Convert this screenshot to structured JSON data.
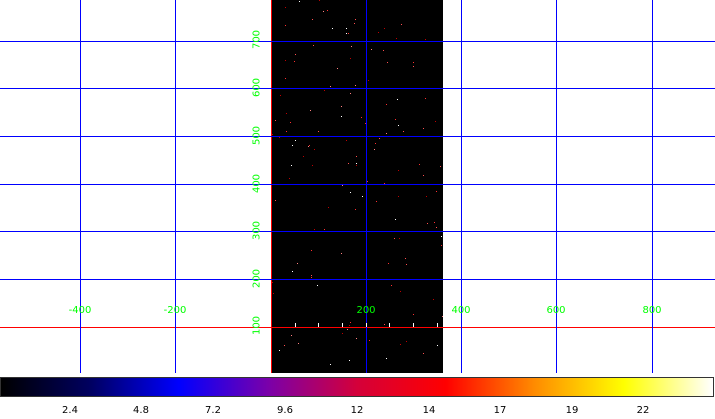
{
  "grid": {
    "x_labels": [
      "-400",
      "-200",
      "200",
      "400",
      "600",
      "800"
    ],
    "y_labels": [
      "700",
      "600",
      "500",
      "400",
      "300",
      "200",
      "100"
    ],
    "label_color": "#00ff00",
    "grid_color": "#0000ff",
    "crosshair_color": "#ff0000"
  },
  "colorbar": {
    "ticks": [
      "2.4",
      "4.8",
      "7.2",
      "9.6",
      "12",
      "14",
      "17",
      "19",
      "22"
    ],
    "stops": [
      "#000000",
      "#000060",
      "#0000ff",
      "#7a00aa",
      "#d4003a",
      "#ff0000",
      "#ff8c00",
      "#ffff00",
      "#ffffff"
    ]
  }
}
